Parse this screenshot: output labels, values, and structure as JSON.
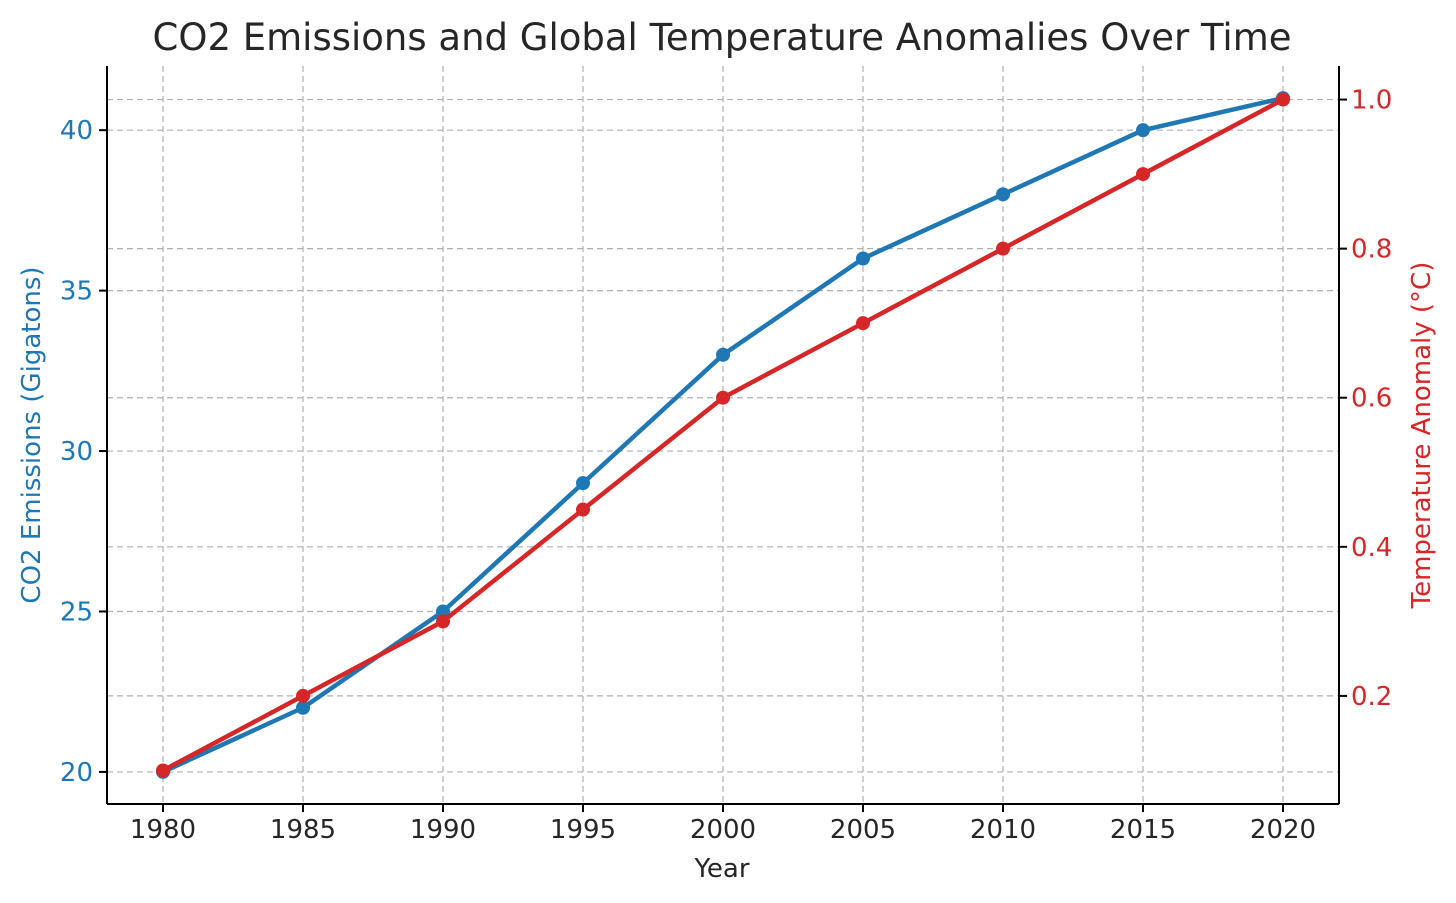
{
  "chart_data": {
    "type": "line",
    "title": "CO2 Emissions and Global Temperature Anomalies Over Time",
    "xlabel": "Year",
    "x": [
      1980,
      1985,
      1990,
      1995,
      2000,
      2005,
      2010,
      2015,
      2020
    ],
    "xlim": [
      1978,
      2022
    ],
    "x_ticks": [
      "1980",
      "1985",
      "1990",
      "1995",
      "2000",
      "2005",
      "2010",
      "2015",
      "2020"
    ],
    "left_axis": {
      "label": "CO2 Emissions (Gigatons)",
      "color": "#1f77b4",
      "ylim": [
        19,
        42
      ],
      "ticks": [
        20,
        25,
        30,
        35,
        40
      ],
      "tick_labels": [
        "20",
        "25",
        "30",
        "35",
        "40"
      ]
    },
    "right_axis": {
      "label": "Temperature Anomaly (°C)",
      "color": "#d62728",
      "ylim": [
        0.055,
        1.045
      ],
      "ticks": [
        0.2,
        0.4,
        0.6,
        0.8,
        1.0
      ],
      "tick_labels": [
        "0.2",
        "0.4",
        "0.6",
        "0.8",
        "1.0"
      ]
    },
    "series": [
      {
        "axis": "left",
        "color": "#1f77b4",
        "values": [
          20,
          22,
          25,
          29,
          33,
          36,
          38,
          40,
          41
        ]
      },
      {
        "axis": "right",
        "color": "#d62728",
        "values": [
          0.1,
          0.2,
          0.3,
          0.45,
          0.6,
          0.7,
          0.8,
          0.9,
          1.0
        ]
      }
    ],
    "grid": true,
    "legend": "none"
  }
}
